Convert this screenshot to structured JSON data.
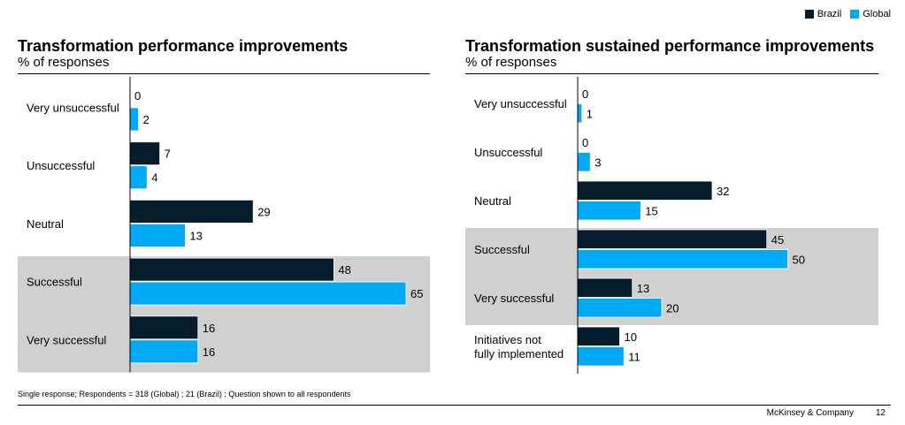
{
  "legend": [
    {
      "label": "Brazil",
      "color": "#051c2c"
    },
    {
      "label": "Global",
      "color": "#00a9f4"
    }
  ],
  "chart_data": [
    {
      "type": "bar",
      "orientation": "horizontal",
      "title": "Transformation performance improvements",
      "subtitle": "% of responses",
      "categories": [
        "Very unsuccessful",
        "Unsuccessful",
        "Neutral",
        "Successful",
        "Very successful"
      ],
      "series": [
        {
          "name": "Brazil",
          "values": [
            0,
            7,
            29,
            48,
            16
          ]
        },
        {
          "name": "Global",
          "values": [
            2,
            4,
            13,
            65,
            16
          ]
        }
      ],
      "highlighted_categories": [
        "Successful",
        "Very successful"
      ],
      "xlim": [
        0,
        65
      ]
    },
    {
      "type": "bar",
      "orientation": "horizontal",
      "title": "Transformation sustained performance improvements",
      "subtitle": "% of responses",
      "categories": [
        "Very unsuccessful",
        "Unsuccessful",
        "Neutral",
        "Successful",
        "Very successful",
        "Initiatives not fully implemented"
      ],
      "series": [
        {
          "name": "Brazil",
          "values": [
            0,
            0,
            32,
            45,
            13,
            10
          ]
        },
        {
          "name": "Global",
          "values": [
            1,
            3,
            15,
            50,
            20,
            11
          ]
        }
      ],
      "highlighted_categories": [
        "Successful",
        "Very successful"
      ],
      "xlim": [
        0,
        50
      ]
    }
  ],
  "footnote": "Single response; Respondents = 318 (Global) ; 21 (Brazil) ; Question shown to all respondents",
  "brand": "McKinsey & Company",
  "page_number": "12",
  "colors": {
    "highlight_band": "#d0d0d0"
  }
}
